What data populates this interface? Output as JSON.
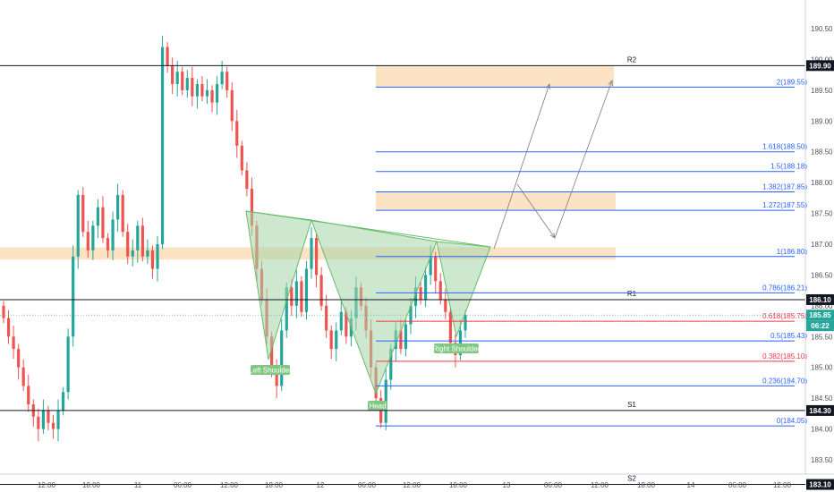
{
  "chart_data": {
    "type": "candlestick",
    "y_axis": {
      "range": [
        183.1,
        190.82
      ],
      "tick_labels": [
        "190.50",
        "190.00",
        "189.50",
        "189.00",
        "188.50",
        "188.00",
        "187.50",
        "187.00",
        "186.50",
        "186.00",
        "185.50",
        "185.00",
        "184.50",
        "184.00",
        "183.50"
      ]
    },
    "x_axis": {
      "tick_labels": [
        "12:00",
        "18:00",
        "11",
        "06:00",
        "12:00",
        "18:00",
        "12",
        "06:00",
        "12:00",
        "18:00",
        "13",
        "06:00",
        "12:00",
        "18:00",
        "14",
        "06:00",
        "12:00"
      ]
    },
    "price_tags": [
      {
        "value": "189.90",
        "kind": "level"
      },
      {
        "value": "186.10",
        "kind": "level"
      },
      {
        "value": "185.85",
        "kind": "last"
      },
      {
        "value": "06:22",
        "kind": "countdown"
      },
      {
        "value": "184.30",
        "kind": "level"
      },
      {
        "value": "183.10",
        "kind": "level"
      }
    ],
    "sr_levels": [
      {
        "name": "R2",
        "value": 189.9
      },
      {
        "name": "R1",
        "value": 186.1
      },
      {
        "name": "S1",
        "value": 184.3
      },
      {
        "name": "S2",
        "value": 183.1
      }
    ],
    "fib_levels": [
      {
        "label": "2(189.55)",
        "value": 189.55,
        "color": "#2962ff"
      },
      {
        "label": "1.618(188.50)",
        "value": 188.5,
        "color": "#2962ff"
      },
      {
        "label": "1.5(188.18)",
        "value": 188.18,
        "color": "#2962ff"
      },
      {
        "label": "1.382(187.85)",
        "value": 187.85,
        "color": "#2962ff"
      },
      {
        "label": "1.272(187.55)",
        "value": 187.55,
        "color": "#2962ff"
      },
      {
        "label": "1(186.80)",
        "value": 186.8,
        "color": "#2962ff"
      },
      {
        "label": "0.786(186.21)",
        "value": 186.21,
        "color": "#2962ff"
      },
      {
        "label": "0.618(185.75)",
        "value": 185.75,
        "color": "#f23645"
      },
      {
        "label": "0.5(185.43)",
        "value": 185.43,
        "color": "#2962ff"
      },
      {
        "label": "0.382(185.10)",
        "value": 185.1,
        "color": "#f23645"
      },
      {
        "label": "0.236(184.70)",
        "value": 184.7,
        "color": "#2962ff"
      },
      {
        "label": "0(184.05)",
        "value": 184.05,
        "color": "#2962ff"
      }
    ],
    "zones": [
      {
        "from": 189.55,
        "to": 189.9
      },
      {
        "from": 187.55,
        "to": 187.85
      },
      {
        "from": 186.75,
        "to": 186.95
      }
    ],
    "pattern_labels": [
      "Left Shoulder",
      "Head",
      "Right Shoulder"
    ],
    "colors": {
      "up": "#26a69a",
      "down": "#ef5350",
      "zone": "#f9d9b0",
      "pattern_fill": "#a5d6a7",
      "label_bg": "#81c784",
      "last_price": "#26a69a"
    }
  }
}
